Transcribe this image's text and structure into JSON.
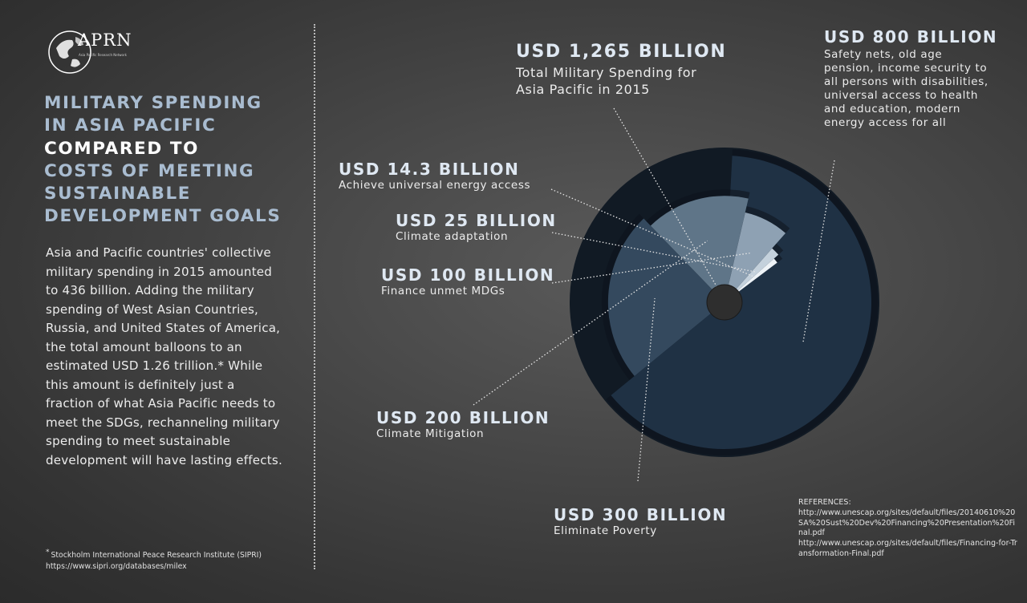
{
  "logo": {
    "name": "APRN",
    "subtitle": "Asia Pacific Research Network"
  },
  "title_lines": [
    {
      "text": "MILITARY SPENDING",
      "highlight": false
    },
    {
      "text": "IN ASIA PACIFIC",
      "highlight": false
    },
    {
      "text": "COMPARED TO",
      "highlight": true
    },
    {
      "text": "COSTS OF MEETING",
      "highlight": false
    },
    {
      "text": "SUSTAINABLE",
      "highlight": false
    },
    {
      "text": "DEVELOPMENT GOALS",
      "highlight": false
    }
  ],
  "intro": "Asia and Pacific countries' collective military spending in 2015 amounted to 436 billion. Adding the military spending of West Asian Countries, Russia, and United States of America, the total amount balloons to an estimated USD 1.26 trillion.* While this amount is definitely just a fraction of what Asia Pacific needs to meet the SDGs, rechanneling military spending to meet sustainable development will have lasting effects.",
  "footnote": {
    "marker": "*",
    "text": "Stockholm International Peace Research Institute (SIPRI) https://www.sipri.org/databases/milex"
  },
  "references": {
    "heading": "REFERENCES:",
    "items": [
      "http://www.unescap.org/sites/default/files/20140610%20SA%20Sust%20Dev%20Financing%20Presentation%20Final.pdf",
      "http://www.unescap.org/sites/default/files/Financing-for-Transformation-Final.pdf"
    ]
  },
  "chart_data": {
    "type": "pie",
    "unit": "USD billion",
    "total": {
      "label": "USD 1,265 BILLION",
      "value": 1265,
      "description": "Total Military Spending for Asia Pacific in 2015"
    },
    "slices": [
      {
        "label": "USD 800 BILLION",
        "value": 800,
        "description": "Safety nets, old age pension, income security to all persons with disabilities, universal access to health and education, modern energy access for all",
        "color": "#1f3144"
      },
      {
        "label": "USD 300 BILLION",
        "value": 300,
        "description": "Eliminate Poverty",
        "color": "#34495e"
      },
      {
        "label": "USD 200 BILLION",
        "value": 200,
        "description": "Climate Mitigation",
        "color": "#5f7588"
      },
      {
        "label": "USD 100 BILLION",
        "value": 100,
        "description": "Finance unmet MDGs",
        "color": "#8ea1b3"
      },
      {
        "label": "USD 25 BILLION",
        "value": 25,
        "description": "Climate adaptation",
        "color": "#c4d1dc"
      },
      {
        "label": "USD 14.3 BILLION",
        "value": 14.3,
        "description": "Achieve universal energy access",
        "color": "#eef3f7"
      }
    ],
    "colors": {
      "outer_disc": "#111a24",
      "hub": "#2e2e2e"
    }
  }
}
